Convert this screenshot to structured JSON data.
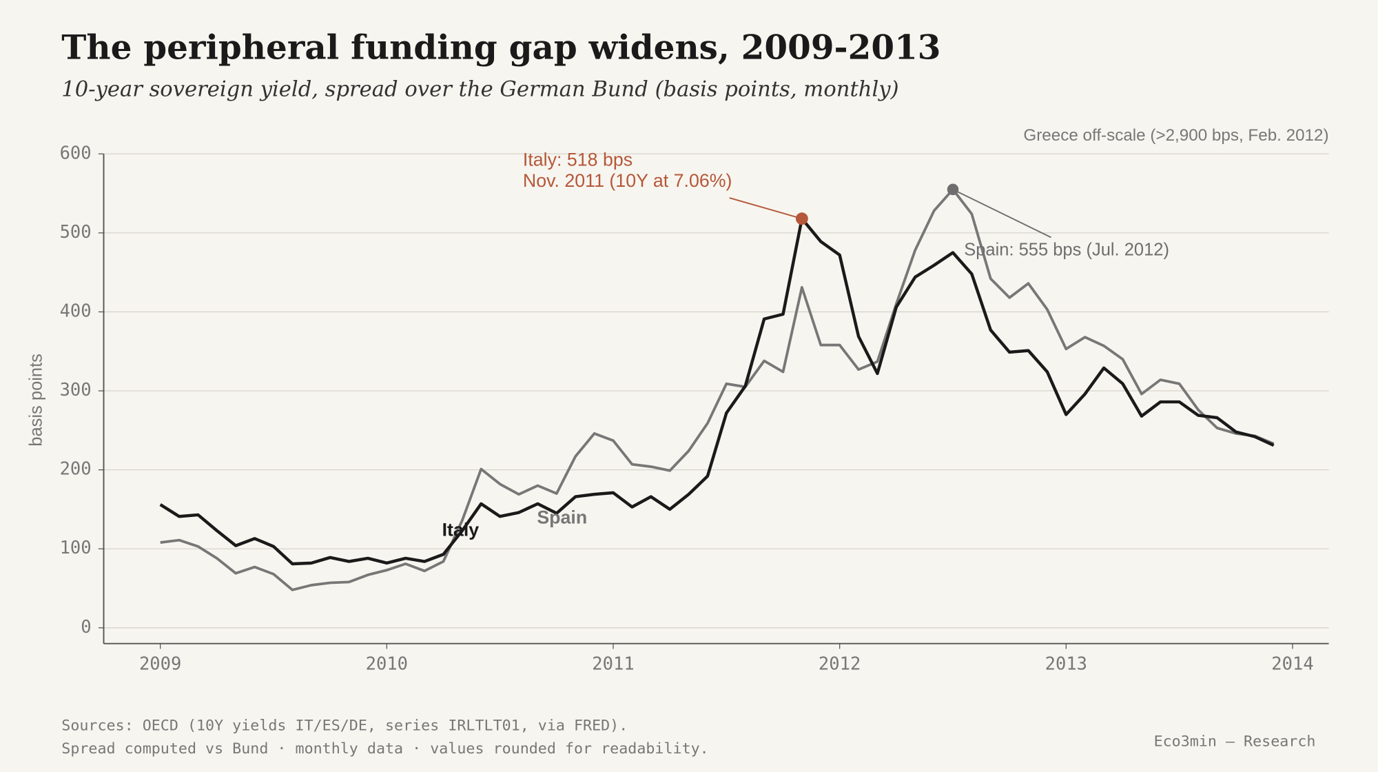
{
  "chart_data": {
    "type": "line",
    "title": "The peripheral funding gap widens, 2009-2013",
    "subtitle": "10-year sovereign yield, spread over the German Bund (basis points, monthly)",
    "y_label": "basis points",
    "x": [
      2009,
      2009.0833,
      2009.1667,
      2009.25,
      2009.3333,
      2009.4167,
      2009.5,
      2009.5833,
      2009.6667,
      2009.75,
      2009.8333,
      2009.9167,
      2010,
      2010.0833,
      2010.1667,
      2010.25,
      2010.3333,
      2010.4167,
      2010.5,
      2010.5833,
      2010.6667,
      2010.75,
      2010.8333,
      2010.9167,
      2011,
      2011.0833,
      2011.1667,
      2011.25,
      2011.3333,
      2011.4167,
      2011.5,
      2011.5833,
      2011.6667,
      2011.75,
      2011.8333,
      2011.9167,
      2012,
      2012.0833,
      2012.1667,
      2012.25,
      2012.3333,
      2012.4167,
      2012.5,
      2012.5833,
      2012.6667,
      2012.75,
      2012.8333,
      2012.9167,
      2013,
      2013.0833,
      2013.1667,
      2013.25,
      2013.3333,
      2013.4167,
      2013.5,
      2013.5833,
      2013.6667,
      2013.75,
      2013.8333,
      2013.9167
    ],
    "series": [
      {
        "name": "Italy",
        "color": "#1a1a1a",
        "highlight_color": "#b5573a",
        "values": [
          156,
          141,
          143,
          123,
          104,
          113,
          103,
          81,
          82,
          89,
          84,
          88,
          82,
          88,
          84,
          93,
          123,
          157,
          141,
          146,
          157,
          145,
          166,
          169,
          171,
          153,
          166,
          150,
          169,
          192,
          272,
          306,
          391,
          397,
          518,
          489,
          472,
          369,
          322,
          406,
          444,
          459,
          475,
          448,
          377,
          349,
          351,
          324,
          270,
          296,
          329,
          309,
          268,
          286,
          286,
          269,
          266,
          248,
          242,
          231
        ]
      },
      {
        "name": "Spain",
        "color": "#777777",
        "highlight_color": "#6e6e6e",
        "values": [
          108,
          111,
          103,
          88,
          69,
          77,
          68,
          48,
          54,
          57,
          58,
          67,
          73,
          81,
          72,
          84,
          136,
          201,
          182,
          169,
          180,
          170,
          217,
          246,
          237,
          207,
          204,
          199,
          224,
          259,
          309,
          305,
          338,
          324,
          431,
          358,
          358,
          327,
          337,
          410,
          478,
          528,
          555,
          524,
          442,
          418,
          436,
          403,
          353,
          368,
          357,
          340,
          296,
          314,
          309,
          276,
          253,
          246,
          243,
          233
        ]
      }
    ],
    "annotations": [
      {
        "text": [
          "Italy: 518 bps",
          "Nov. 2011 (10Y at 7.06%)"
        ]
      },
      {
        "text": [
          "Spain: 555 bps (Jul. 2012)"
        ]
      },
      {
        "text": [
          "Greece off-scale (>2,900 bps, Feb. 2012)"
        ]
      }
    ],
    "xlim": [
      2008.75,
      2014.16
    ],
    "xticks": [
      2009,
      2010,
      2011,
      2012,
      2013,
      2014
    ],
    "ylim": [
      -20,
      600
    ],
    "yticks": [
      0,
      100,
      200,
      300,
      400,
      500,
      600
    ],
    "grid": true,
    "source": [
      "Sources: OECD (10Y yields IT/ES/DE, series IRLTLT01, via FRED).",
      "Spread computed vs Bund · monthly data · values rounded for readability."
    ],
    "credit": "Eco3min — Research"
  }
}
